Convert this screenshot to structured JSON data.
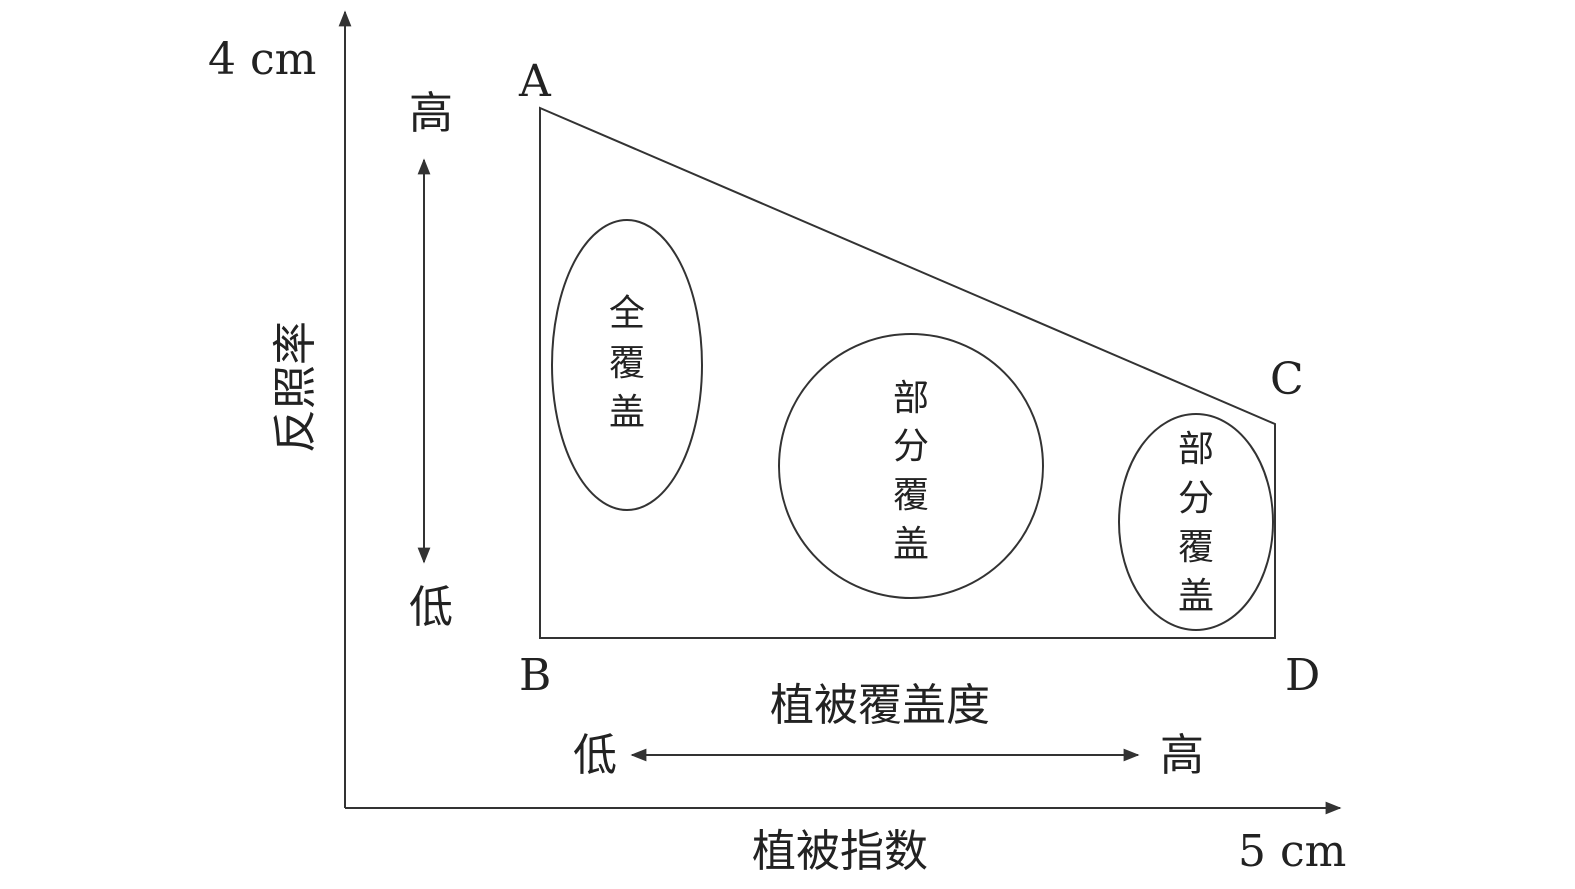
{
  "axes": {
    "y_label": "反照率",
    "y_max_label": "4 cm",
    "x_label": "植被指数",
    "x_max_label": "5 cm"
  },
  "vertices": {
    "a": "A",
    "b": "B",
    "c": "C",
    "d": "D"
  },
  "albedo_scale": {
    "high": "高",
    "low": "低"
  },
  "coverage_scale": {
    "title": "植被覆盖度",
    "low": "低",
    "high": "高"
  },
  "regions": [
    {
      "label": [
        "全",
        "覆",
        "盖"
      ]
    },
    {
      "label": [
        "部",
        "分",
        "覆",
        "盖"
      ]
    },
    {
      "label": [
        "部",
        "分",
        "覆",
        "盖"
      ]
    }
  ],
  "colors": {
    "line": "#333333",
    "text": "#222222",
    "background": "#ffffff"
  }
}
